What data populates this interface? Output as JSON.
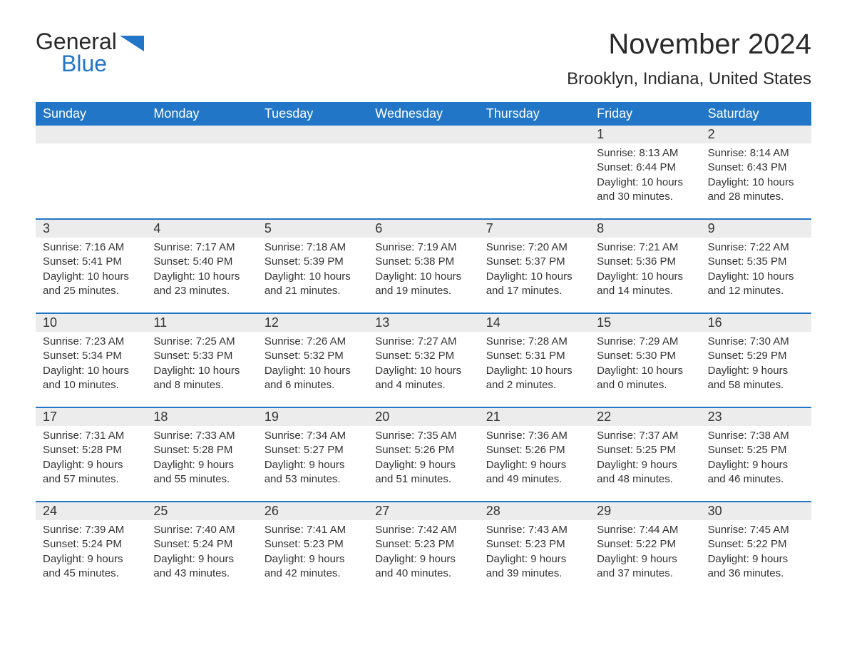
{
  "logo": {
    "text_general": "General",
    "text_blue": "Blue",
    "shape_color": "#2176c7"
  },
  "header": {
    "month_title": "November 2024",
    "location": "Brooklyn, Indiana, United States"
  },
  "styling": {
    "header_bg": "#2176c7",
    "header_text": "#ffffff",
    "day_number_bg": "#ececec",
    "week_border": "#2176c7",
    "body_text": "#333333",
    "background": "#ffffff",
    "title_fontsize": 40,
    "location_fontsize": 24,
    "weekday_fontsize": 18,
    "content_fontsize": 15
  },
  "weekdays": [
    "Sunday",
    "Monday",
    "Tuesday",
    "Wednesday",
    "Thursday",
    "Friday",
    "Saturday"
  ],
  "weeks": [
    [
      {
        "day": "",
        "sunrise": "",
        "sunset": "",
        "daylight": ""
      },
      {
        "day": "",
        "sunrise": "",
        "sunset": "",
        "daylight": ""
      },
      {
        "day": "",
        "sunrise": "",
        "sunset": "",
        "daylight": ""
      },
      {
        "day": "",
        "sunrise": "",
        "sunset": "",
        "daylight": ""
      },
      {
        "day": "",
        "sunrise": "",
        "sunset": "",
        "daylight": ""
      },
      {
        "day": "1",
        "sunrise": "Sunrise: 8:13 AM",
        "sunset": "Sunset: 6:44 PM",
        "daylight": "Daylight: 10 hours and 30 minutes."
      },
      {
        "day": "2",
        "sunrise": "Sunrise: 8:14 AM",
        "sunset": "Sunset: 6:43 PM",
        "daylight": "Daylight: 10 hours and 28 minutes."
      }
    ],
    [
      {
        "day": "3",
        "sunrise": "Sunrise: 7:16 AM",
        "sunset": "Sunset: 5:41 PM",
        "daylight": "Daylight: 10 hours and 25 minutes."
      },
      {
        "day": "4",
        "sunrise": "Sunrise: 7:17 AM",
        "sunset": "Sunset: 5:40 PM",
        "daylight": "Daylight: 10 hours and 23 minutes."
      },
      {
        "day": "5",
        "sunrise": "Sunrise: 7:18 AM",
        "sunset": "Sunset: 5:39 PM",
        "daylight": "Daylight: 10 hours and 21 minutes."
      },
      {
        "day": "6",
        "sunrise": "Sunrise: 7:19 AM",
        "sunset": "Sunset: 5:38 PM",
        "daylight": "Daylight: 10 hours and 19 minutes."
      },
      {
        "day": "7",
        "sunrise": "Sunrise: 7:20 AM",
        "sunset": "Sunset: 5:37 PM",
        "daylight": "Daylight: 10 hours and 17 minutes."
      },
      {
        "day": "8",
        "sunrise": "Sunrise: 7:21 AM",
        "sunset": "Sunset: 5:36 PM",
        "daylight": "Daylight: 10 hours and 14 minutes."
      },
      {
        "day": "9",
        "sunrise": "Sunrise: 7:22 AM",
        "sunset": "Sunset: 5:35 PM",
        "daylight": "Daylight: 10 hours and 12 minutes."
      }
    ],
    [
      {
        "day": "10",
        "sunrise": "Sunrise: 7:23 AM",
        "sunset": "Sunset: 5:34 PM",
        "daylight": "Daylight: 10 hours and 10 minutes."
      },
      {
        "day": "11",
        "sunrise": "Sunrise: 7:25 AM",
        "sunset": "Sunset: 5:33 PM",
        "daylight": "Daylight: 10 hours and 8 minutes."
      },
      {
        "day": "12",
        "sunrise": "Sunrise: 7:26 AM",
        "sunset": "Sunset: 5:32 PM",
        "daylight": "Daylight: 10 hours and 6 minutes."
      },
      {
        "day": "13",
        "sunrise": "Sunrise: 7:27 AM",
        "sunset": "Sunset: 5:32 PM",
        "daylight": "Daylight: 10 hours and 4 minutes."
      },
      {
        "day": "14",
        "sunrise": "Sunrise: 7:28 AM",
        "sunset": "Sunset: 5:31 PM",
        "daylight": "Daylight: 10 hours and 2 minutes."
      },
      {
        "day": "15",
        "sunrise": "Sunrise: 7:29 AM",
        "sunset": "Sunset: 5:30 PM",
        "daylight": "Daylight: 10 hours and 0 minutes."
      },
      {
        "day": "16",
        "sunrise": "Sunrise: 7:30 AM",
        "sunset": "Sunset: 5:29 PM",
        "daylight": "Daylight: 9 hours and 58 minutes."
      }
    ],
    [
      {
        "day": "17",
        "sunrise": "Sunrise: 7:31 AM",
        "sunset": "Sunset: 5:28 PM",
        "daylight": "Daylight: 9 hours and 57 minutes."
      },
      {
        "day": "18",
        "sunrise": "Sunrise: 7:33 AM",
        "sunset": "Sunset: 5:28 PM",
        "daylight": "Daylight: 9 hours and 55 minutes."
      },
      {
        "day": "19",
        "sunrise": "Sunrise: 7:34 AM",
        "sunset": "Sunset: 5:27 PM",
        "daylight": "Daylight: 9 hours and 53 minutes."
      },
      {
        "day": "20",
        "sunrise": "Sunrise: 7:35 AM",
        "sunset": "Sunset: 5:26 PM",
        "daylight": "Daylight: 9 hours and 51 minutes."
      },
      {
        "day": "21",
        "sunrise": "Sunrise: 7:36 AM",
        "sunset": "Sunset: 5:26 PM",
        "daylight": "Daylight: 9 hours and 49 minutes."
      },
      {
        "day": "22",
        "sunrise": "Sunrise: 7:37 AM",
        "sunset": "Sunset: 5:25 PM",
        "daylight": "Daylight: 9 hours and 48 minutes."
      },
      {
        "day": "23",
        "sunrise": "Sunrise: 7:38 AM",
        "sunset": "Sunset: 5:25 PM",
        "daylight": "Daylight: 9 hours and 46 minutes."
      }
    ],
    [
      {
        "day": "24",
        "sunrise": "Sunrise: 7:39 AM",
        "sunset": "Sunset: 5:24 PM",
        "daylight": "Daylight: 9 hours and 45 minutes."
      },
      {
        "day": "25",
        "sunrise": "Sunrise: 7:40 AM",
        "sunset": "Sunset: 5:24 PM",
        "daylight": "Daylight: 9 hours and 43 minutes."
      },
      {
        "day": "26",
        "sunrise": "Sunrise: 7:41 AM",
        "sunset": "Sunset: 5:23 PM",
        "daylight": "Daylight: 9 hours and 42 minutes."
      },
      {
        "day": "27",
        "sunrise": "Sunrise: 7:42 AM",
        "sunset": "Sunset: 5:23 PM",
        "daylight": "Daylight: 9 hours and 40 minutes."
      },
      {
        "day": "28",
        "sunrise": "Sunrise: 7:43 AM",
        "sunset": "Sunset: 5:23 PM",
        "daylight": "Daylight: 9 hours and 39 minutes."
      },
      {
        "day": "29",
        "sunrise": "Sunrise: 7:44 AM",
        "sunset": "Sunset: 5:22 PM",
        "daylight": "Daylight: 9 hours and 37 minutes."
      },
      {
        "day": "30",
        "sunrise": "Sunrise: 7:45 AM",
        "sunset": "Sunset: 5:22 PM",
        "daylight": "Daylight: 9 hours and 36 minutes."
      }
    ]
  ]
}
